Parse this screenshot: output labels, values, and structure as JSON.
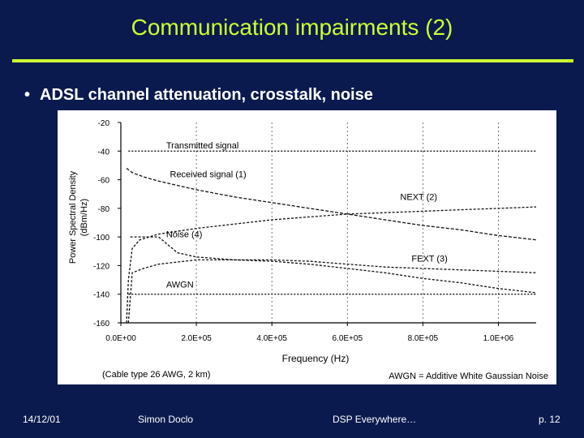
{
  "slide": {
    "title": "Communication impairments (2)",
    "bullet_marker": "•",
    "bullet": "ADSL channel attenuation, crosstalk, noise",
    "colors": {
      "background": "#0b1a4e",
      "title": "#ccff33",
      "rule": "#ccff33",
      "text": "#ffffff"
    }
  },
  "footer": {
    "date": "14/12/01",
    "author": "Simon Doclo",
    "course": "DSP Everywhere…",
    "page": "p. 12"
  },
  "chart_data": {
    "type": "line",
    "xlabel": "Frequency (Hz)",
    "ylabel_line1": "Power Spectral Density",
    "ylabel_line2": "(dBm/Hz)",
    "xlim": [
      0,
      1100000
    ],
    "ylim": [
      -160,
      -20
    ],
    "xticks": [
      0,
      200000,
      400000,
      600000,
      800000,
      1000000
    ],
    "xtick_labels": [
      "0.0E+00",
      "2.0E+05",
      "4.0E+05",
      "6.0E+05",
      "8.0E+05",
      "1.0E+06"
    ],
    "yticks": [
      -20,
      -40,
      -60,
      -80,
      -100,
      -120,
      -140,
      -160
    ],
    "ytick_labels": [
      "-20",
      "-40",
      "-60",
      "-80",
      "-100",
      "-120",
      "-140",
      "-160"
    ],
    "grid": "vertical dashed",
    "caption_left": "(Cable type 26 AWG, 2 km)",
    "caption_right": "AWGN = Additive White Gaussian Noise",
    "series": [
      {
        "name": "Transmitted signal",
        "label_x": 120000,
        "label_y": -36,
        "x": [
          20000,
          1100000
        ],
        "y": [
          -40,
          -40
        ]
      },
      {
        "name": "Received signal (1)",
        "label_x": 130000,
        "label_y": -56,
        "x": [
          15000,
          30000,
          60000,
          100000,
          150000,
          200000,
          300000,
          400000,
          500000,
          600000,
          700000,
          800000,
          900000,
          1000000,
          1100000
        ],
        "y": [
          -52,
          -55,
          -58,
          -61,
          -64,
          -67,
          -72,
          -76,
          -80,
          -84,
          -88,
          -92,
          -95,
          -99,
          -102
        ]
      },
      {
        "name": "NEXT (2)",
        "label_x": 740000,
        "label_y": -72,
        "x": [
          15000,
          20000,
          30000,
          50000,
          100000,
          200000,
          300000,
          400000,
          500000,
          600000,
          700000,
          800000,
          900000,
          1000000,
          1100000
        ],
        "y": [
          -160,
          -130,
          -108,
          -102,
          -98,
          -94,
          -91,
          -88,
          -86,
          -84,
          -83,
          -82,
          -81,
          -80,
          -79
        ]
      },
      {
        "name": "FEXT (3)",
        "label_x": 770000,
        "label_y": -115,
        "x": [
          20000,
          30000,
          60000,
          100000,
          200000,
          300000,
          400000,
          500000,
          600000,
          700000,
          800000,
          900000,
          1000000,
          1100000
        ],
        "y": [
          -160,
          -125,
          -122,
          -119,
          -116,
          -116,
          -117,
          -119,
          -122,
          -125,
          -129,
          -132,
          -136,
          -139
        ]
      },
      {
        "name": "Noise (4)",
        "label_x": 120000,
        "label_y": -98,
        "x": [
          25000,
          100000,
          150000,
          200000,
          300000,
          400000,
          500000,
          600000,
          700000,
          800000,
          900000,
          1000000,
          1100000
        ],
        "y": [
          -100,
          -100,
          -111,
          -114,
          -116,
          -116,
          -117,
          -119,
          -121,
          -122,
          -123,
          -124,
          -125
        ]
      },
      {
        "name": "AWGN",
        "label_x": 120000,
        "label_y": -133,
        "x": [
          20000,
          1100000
        ],
        "y": [
          -140,
          -140
        ]
      }
    ]
  }
}
